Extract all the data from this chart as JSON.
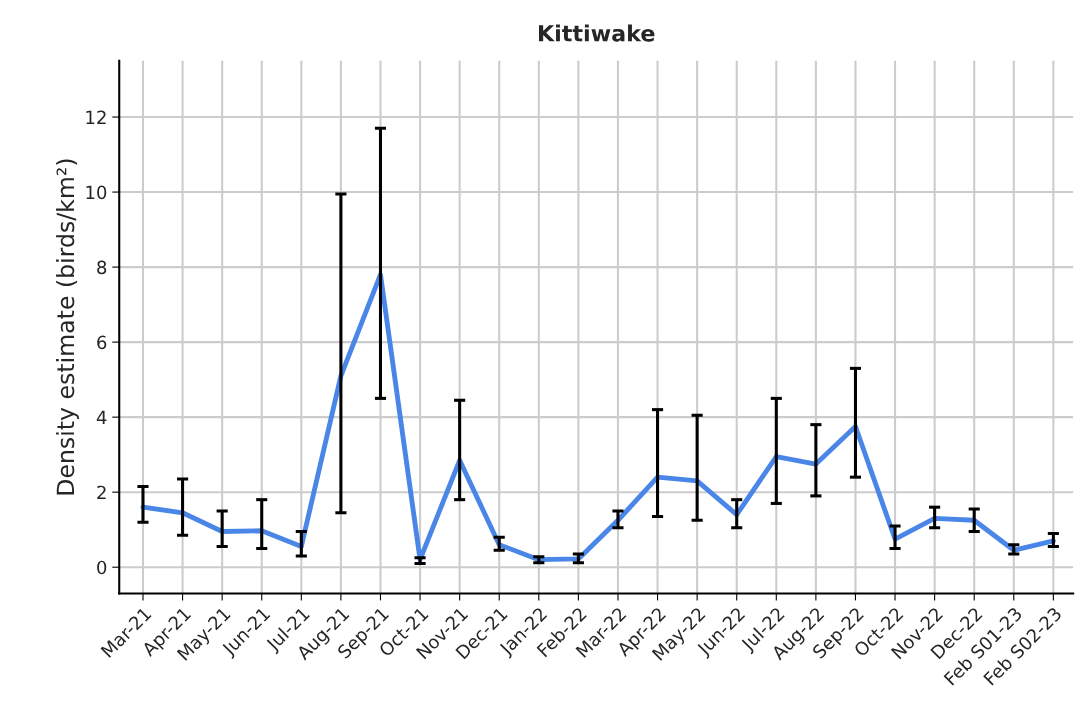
{
  "chart_data": {
    "type": "line",
    "title": "Kittiwake",
    "ylabel": "Density estimate (birds/km²)",
    "categories": [
      "Mar-21",
      "Apr-21",
      "May-21",
      "Jun-21",
      "Jul-21",
      "Aug-21",
      "Sep-21",
      "Oct-21",
      "Nov-21",
      "Dec-21",
      "Jan-22",
      "Feb-22",
      "Mar-22",
      "Apr-22",
      "May-22",
      "Jun-22",
      "Jul-22",
      "Aug-22",
      "Sep-22",
      "Oct-22",
      "Nov-22",
      "Dec-22",
      "Feb S01-23",
      "Feb S02-23"
    ],
    "series": [
      {
        "color": "#4a86e8",
        "values": [
          1.6,
          1.45,
          0.95,
          0.97,
          0.55,
          5.1,
          7.8,
          0.2,
          2.85,
          0.6,
          0.2,
          0.22,
          1.25,
          2.4,
          2.3,
          1.4,
          2.95,
          2.75,
          3.75,
          0.75,
          1.3,
          1.25,
          0.45,
          0.7
        ],
        "errors": [
          [
            1.2,
            2.15
          ],
          [
            0.85,
            2.35
          ],
          [
            0.55,
            1.5
          ],
          [
            0.5,
            1.8
          ],
          [
            0.3,
            0.95
          ],
          [
            1.45,
            9.95
          ],
          [
            4.5,
            11.7
          ],
          [
            0.1,
            0.25
          ],
          [
            1.8,
            4.45
          ],
          [
            0.45,
            0.8
          ],
          [
            0.12,
            0.28
          ],
          [
            0.12,
            0.35
          ],
          [
            1.05,
            1.5
          ],
          [
            1.35,
            4.2
          ],
          [
            1.25,
            4.05
          ],
          [
            1.05,
            1.8
          ],
          [
            1.7,
            4.5
          ],
          [
            1.9,
            3.8
          ],
          [
            2.4,
            5.3
          ],
          [
            0.5,
            1.1
          ],
          [
            1.05,
            1.6
          ],
          [
            0.95,
            1.55
          ],
          [
            0.35,
            0.6
          ],
          [
            0.55,
            0.9
          ]
        ]
      }
    ],
    "ylim": [
      -0.7,
      13.5
    ],
    "yticks": [
      0,
      2,
      4,
      6,
      8,
      10,
      12
    ],
    "grid": true,
    "marker": "none",
    "line_style": "solid"
  }
}
